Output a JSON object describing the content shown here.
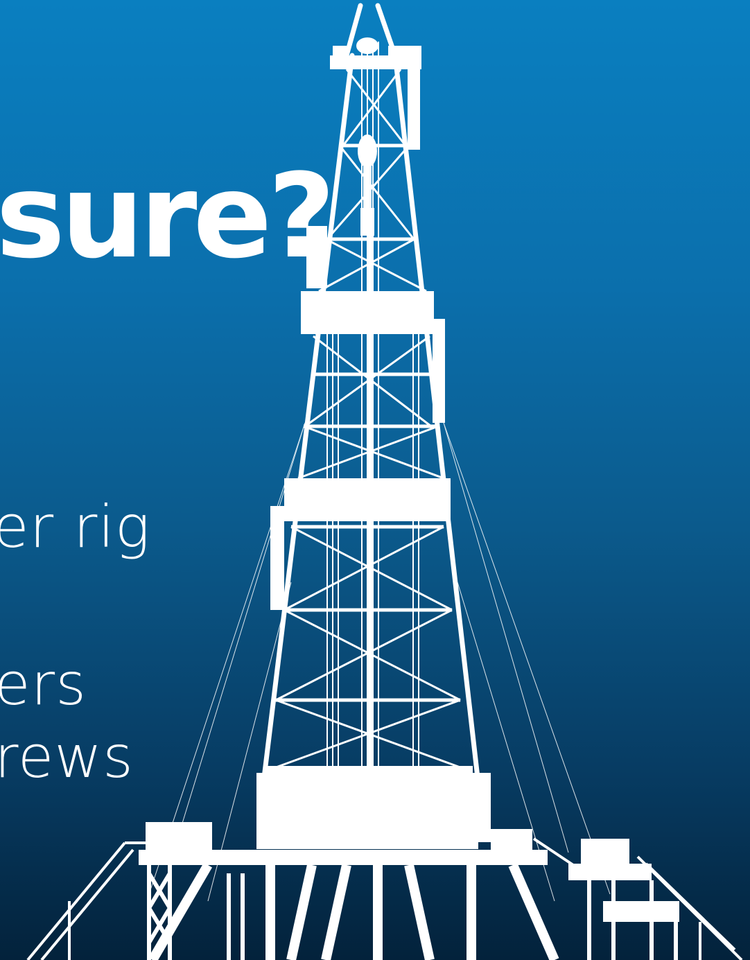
{
  "headline": "sure?",
  "bullets": [
    "er rig",
    "ers",
    "rews"
  ],
  "colors": {
    "background_top": "#0a7fc0",
    "background_bottom": "#03223b",
    "foreground": "#ffffff"
  },
  "illustration": {
    "subject": "drilling-rig-silhouette"
  }
}
